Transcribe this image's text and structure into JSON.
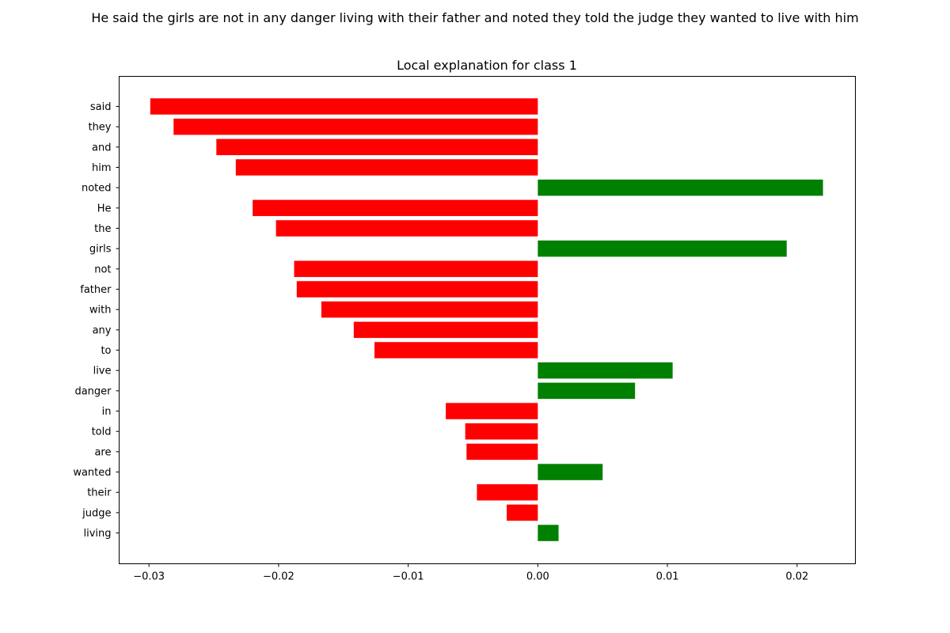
{
  "sentence": "He said the girls are not in any danger living with their father and noted they told the judge they wanted to live with him",
  "colors": {
    "negative": "#ff0000",
    "positive": "#008000"
  },
  "chart_data": {
    "type": "bar",
    "orientation": "horizontal",
    "title": "Local explanation for class 1",
    "xlabel": "",
    "ylabel": "",
    "xlim": [
      -0.0323,
      0.0245
    ],
    "xticks": [
      -0.03,
      -0.02,
      -0.01,
      0.0,
      0.01,
      0.02
    ],
    "xtick_labels": [
      "−0.03",
      "−0.02",
      "−0.01",
      "0.00",
      "0.01",
      "0.02"
    ],
    "grid": false,
    "legend": "none",
    "categories": [
      "said",
      "they",
      "and",
      "him",
      "noted",
      "He",
      "the",
      "girls",
      "not",
      "father",
      "with",
      "any",
      "to",
      "live",
      "danger",
      "in",
      "told",
      "are",
      "wanted",
      "their",
      "judge",
      "living"
    ],
    "values": [
      -0.0299,
      -0.0281,
      -0.0248,
      -0.0233,
      0.022,
      -0.022,
      -0.0202,
      0.0192,
      -0.0188,
      -0.0186,
      -0.0167,
      -0.0142,
      -0.0126,
      0.0104,
      0.0075,
      -0.0071,
      -0.0056,
      -0.0055,
      0.005,
      -0.0047,
      -0.0024,
      0.0016
    ]
  }
}
